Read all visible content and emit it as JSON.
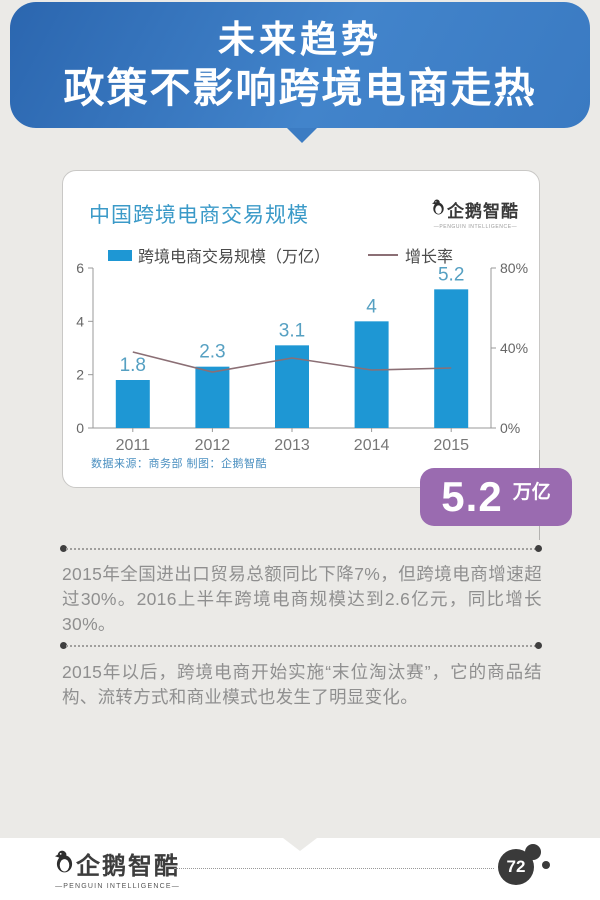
{
  "header": {
    "line1": "未来趋势",
    "line2": "政策不影响跨境电商走热"
  },
  "card": {
    "title": "中国跨境电商交易规模",
    "logo_text": "企鹅智酷",
    "logo_subtitle": "—PENGUIN INTELLIGENCE—",
    "source": "数据来源：商务部 制图：企鹅智酷"
  },
  "chart_data": {
    "type": "bar",
    "categories": [
      "2011",
      "2012",
      "2013",
      "2014",
      "2015"
    ],
    "series": [
      {
        "name": "跨境电商交易规模（万亿）",
        "type": "bar",
        "values": [
          1.8,
          2.3,
          3.1,
          4,
          5.2
        ],
        "color": "#1e97d4",
        "axis": "left"
      },
      {
        "name": "增长率",
        "type": "line",
        "values": [
          38,
          28,
          35,
          29,
          30
        ],
        "unit": "%",
        "color": "#8b6f75",
        "axis": "right"
      }
    ],
    "title": "中国跨境电商交易规模",
    "xlabel": "",
    "ylabel": "",
    "left_axis": {
      "max": 6,
      "ticks": [
        0,
        2,
        4,
        6
      ]
    },
    "right_axis": {
      "max": 80,
      "ticks": [
        {
          "v": 0,
          "label": "0%"
        },
        {
          "v": 40,
          "label": "40%"
        },
        {
          "v": 80,
          "label": "80%"
        }
      ]
    },
    "legend_position": "top",
    "grid": false,
    "value_label_color": "#56a0c2"
  },
  "highlight": {
    "value": "5.2",
    "unit": "万亿",
    "color": "#9a6bb0"
  },
  "paragraphs": [
    "2015年全国进出口贸易总额同比下降7%，但跨境电商增速超过30%。2016上半年跨境电商规模达到2.6亿元，同比增长30%。",
    "2015年以后，跨境电商开始实施“末位淘汰赛”，它的商品结构、流转方式和商业模式也发生了明显变化。"
  ],
  "footer": {
    "logo_text": "企鹅智酷",
    "logo_subtitle": "—PENGUIN INTELLIGENCE—",
    "page_number": "72"
  }
}
